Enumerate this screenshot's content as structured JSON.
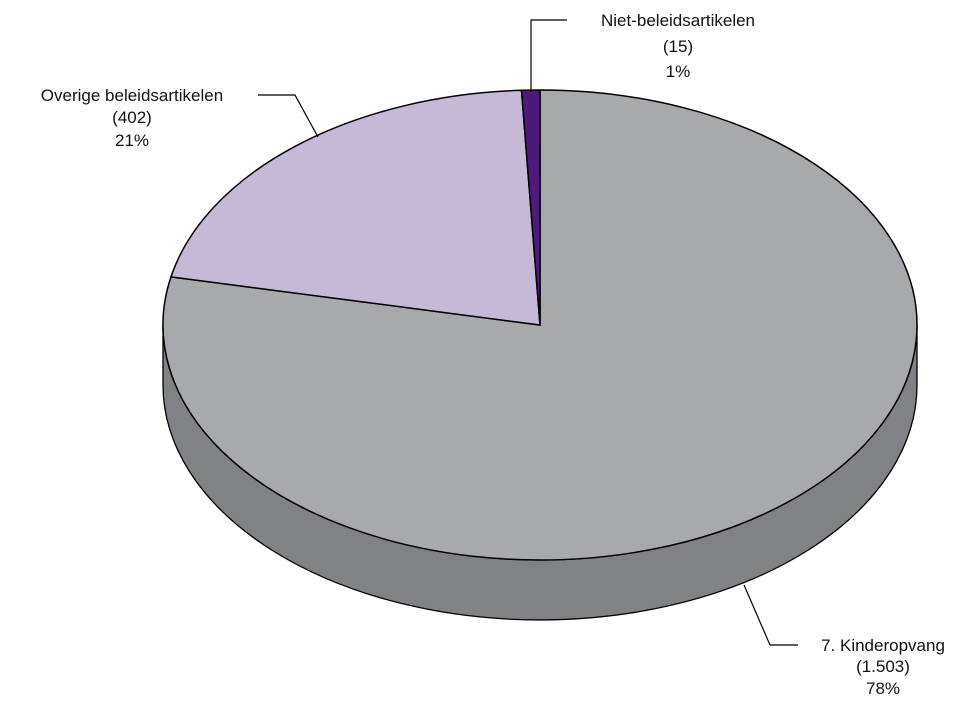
{
  "chart_data": {
    "type": "pie",
    "three_d": true,
    "start_angle_deg": 90,
    "direction": "clockwise",
    "slices": [
      {
        "label": "7. Kinderopvang",
        "value": 1503,
        "value_text": "(1.503)",
        "percent_text": "78%",
        "color": "#a7a9ac",
        "side_color": "#808285"
      },
      {
        "label": "Overige beleidsartikelen",
        "value": 402,
        "value_text": "(402)",
        "percent_text": "21%",
        "color": "#c6b9d8",
        "side_color": "#9e91b0"
      },
      {
        "label": "Niet-beleidsartikelen",
        "value": 15,
        "value_text": "(15)",
        "percent_text": "1%",
        "color": "#4b1a7a",
        "side_color": "#2f0f4d"
      }
    ]
  }
}
